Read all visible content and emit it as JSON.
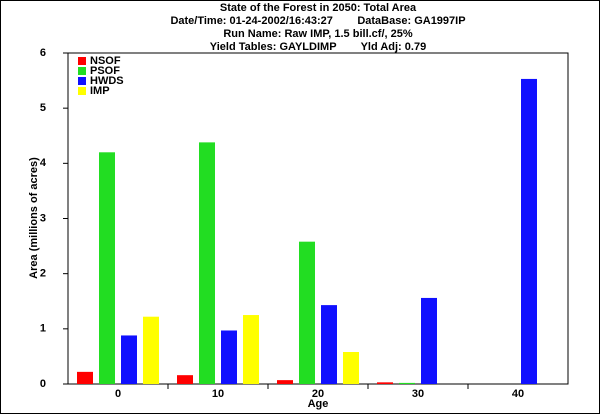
{
  "chart_data": {
    "type": "bar",
    "title": "State of the Forest in 2050: Total Area",
    "subtitle": [
      "Date/Time: 01-24-2002/16:43:27        DataBase: GA1997IP",
      "Run Name: Raw IMP, 1.5 bill.cf/, 25%",
      "Yield Tables: GAYLDIMP        Yld Adj: 0.79"
    ],
    "x_label": "Age",
    "y_label": "Area (millions of acres)",
    "categories": [
      "0",
      "10",
      "20",
      "30",
      "40"
    ],
    "series": [
      {
        "name": "NSOF",
        "color": "#ff0000",
        "values": [
          0.22,
          0.16,
          0.07,
          0.03,
          0
        ]
      },
      {
        "name": "PSOF",
        "color": "#22dd22",
        "values": [
          4.2,
          4.38,
          2.58,
          0.02,
          0
        ]
      },
      {
        "name": "HWDS",
        "color": "#1010ff",
        "values": [
          0.88,
          0.97,
          1.43,
          1.56,
          5.53
        ]
      },
      {
        "name": "IMP",
        "color": "#ffff00",
        "values": [
          1.22,
          1.25,
          0.58,
          0,
          0
        ]
      }
    ],
    "ylim": [
      0,
      6
    ],
    "yticks": [
      0,
      1,
      2,
      3,
      4,
      5,
      6
    ],
    "legend": "upper left",
    "grid": false
  }
}
